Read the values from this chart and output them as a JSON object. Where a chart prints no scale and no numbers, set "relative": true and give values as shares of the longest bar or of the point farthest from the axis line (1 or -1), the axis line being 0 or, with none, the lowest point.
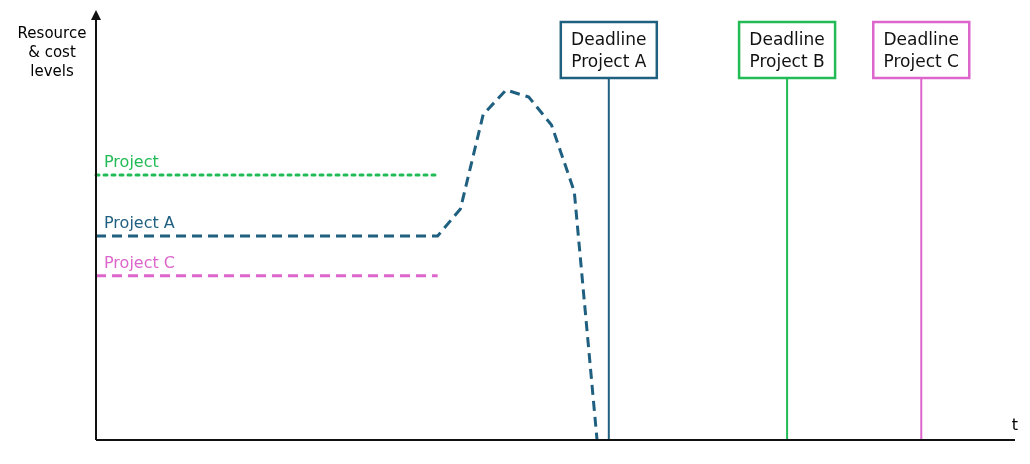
{
  "chart_data": {
    "type": "line",
    "relative": true,
    "xlabel": "t",
    "ylabel": "Resource & cost levels",
    "legend": false,
    "marker": "none",
    "categories": [
      null,
      null,
      null,
      null,
      null,
      null,
      null,
      null,
      null,
      null,
      null,
      null,
      null,
      null,
      null,
      null,
      null,
      null,
      null,
      null,
      null,
      null,
      null,
      null,
      null,
      null,
      null,
      null,
      null,
      null,
      null,
      null,
      null,
      null,
      null,
      null,
      null,
      null,
      null,
      null,
      null
    ],
    "series": [
      {
        "name": "Project",
        "color": "#22bb55",
        "line_style": "dotted",
        "values": [
          0.757,
          0.757,
          0.757,
          0.757,
          0.757,
          0.757,
          0.757,
          0.757,
          0.757,
          0.757,
          0.757,
          0.757,
          0.757,
          0.757,
          0.757,
          0.757,
          null,
          null,
          null,
          null,
          null,
          null,
          null,
          null,
          null,
          null,
          null,
          null,
          null,
          null,
          null,
          null,
          null,
          null,
          null,
          null,
          null,
          null,
          null,
          null,
          null
        ]
      },
      {
        "name": "Project A",
        "color": "#1f5f80",
        "line_style": "dashed",
        "values": [
          0.583,
          0.583,
          0.583,
          0.583,
          0.583,
          0.583,
          0.583,
          0.583,
          0.583,
          0.583,
          0.583,
          0.583,
          0.583,
          0.583,
          0.583,
          0.583,
          0.66,
          0.93,
          1,
          0.98,
          0.9,
          0.71,
          0,
          null,
          null,
          null,
          null,
          null,
          null,
          null,
          null,
          null,
          null,
          null,
          null,
          null,
          null,
          null,
          null,
          null,
          null
        ]
      },
      {
        "name": "Project C",
        "color": "#dd66cc",
        "line_style": "dashed",
        "values": [
          0.469,
          0.469,
          0.469,
          0.469,
          0.469,
          0.469,
          0.469,
          0.469,
          0.469,
          0.469,
          0.469,
          0.469,
          0.469,
          0.469,
          0.469,
          0.469,
          null,
          null,
          null,
          null,
          null,
          null,
          null,
          null,
          null,
          null,
          null,
          null,
          null,
          null,
          null,
          null,
          null,
          null,
          null,
          null,
          null,
          null,
          null,
          null,
          null
        ]
      }
    ],
    "annotations": [
      "Deadline Project A",
      "Deadline Project B",
      "Deadline Project C"
    ]
  }
}
